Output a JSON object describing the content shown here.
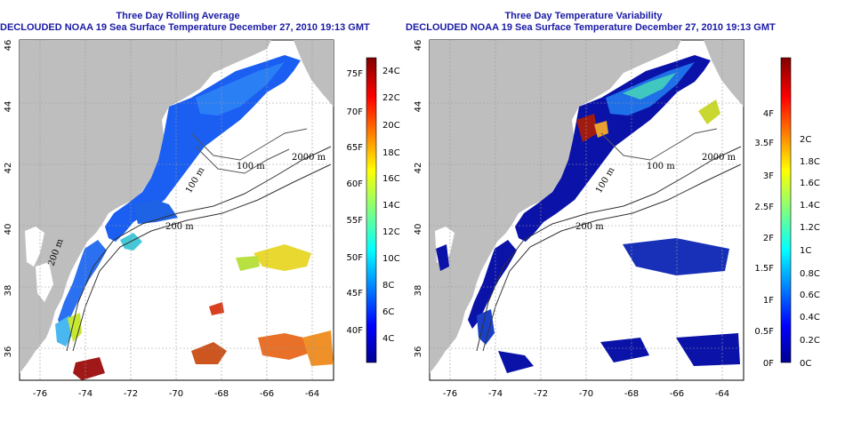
{
  "panels": [
    {
      "title_line1": "Three Day Rolling Average",
      "title_line2": "DECLOUDED NOAA 19 Sea Surface Temperature December 27, 2010 19:13 GMT",
      "contours": [
        "200 m",
        "100 m",
        "2000 m",
        "200 m",
        "100 m"
      ],
      "colorbar": {
        "left_labels": [
          "75F",
          "70F",
          "65F",
          "60F",
          "55F",
          "50F",
          "45F",
          "40F"
        ],
        "right_labels": [
          "24C",
          "22C",
          "20C",
          "18C",
          "16C",
          "14C",
          "12C",
          "10C",
          "8C",
          "6C",
          "4C"
        ]
      }
    },
    {
      "title_line1": "Three Day Temperature Variability",
      "title_line2": "DECLOUDED NOAA 19 Sea Surface Temperature December 27, 2010 19:13 GMT",
      "contours": [
        "200 m",
        "100 m",
        "2000 m",
        "100 m"
      ],
      "colorbar": {
        "left_labels": [
          "4F",
          "3.5F",
          "3F",
          "2.5F",
          "2F",
          "1.5F",
          "1F",
          "0.5F",
          "0F"
        ],
        "right_labels": [
          "2C",
          "1.8C",
          "1.6C",
          "1.4C",
          "1.2C",
          "1C",
          "0.8C",
          "0.6C",
          "0.4C",
          "0.2C",
          "0C"
        ]
      }
    }
  ],
  "axes": {
    "lat_labels": [
      "46",
      "44",
      "42",
      "40",
      "38",
      "36"
    ],
    "lon_labels": [
      "-76",
      "-74",
      "-72",
      "-70",
      "-68",
      "-66",
      "-64"
    ]
  },
  "colors": {
    "land": "#bebebe",
    "title": "#1a1aa6"
  }
}
